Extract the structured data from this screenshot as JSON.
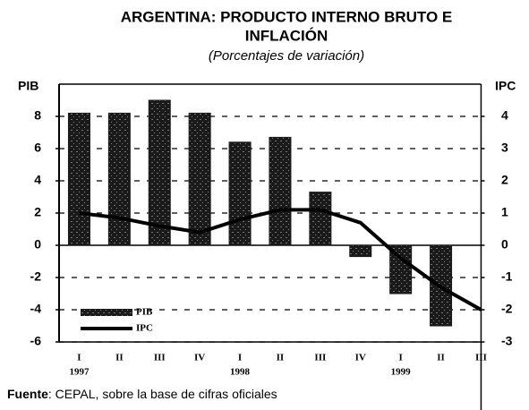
{
  "chart_data": {
    "type": "bar_line",
    "title_lines": [
      "ARGENTINA: PRODUCTO INTERNO BRUTO E",
      "INFLACIÓN"
    ],
    "subtitle": "(Porcentajes de variación)",
    "y_label": "PIB",
    "y2_label": "IPC",
    "categories": [
      "I",
      "II",
      "III",
      "IV",
      "I",
      "II",
      "III",
      "IV",
      "I",
      "II",
      "III"
    ],
    "year_labels": [
      "1997",
      null,
      null,
      null,
      "1998",
      null,
      null,
      null,
      "1999",
      null,
      null
    ],
    "series": [
      {
        "name": "PIB",
        "color": "#1a1a1a",
        "values": [
          8.2,
          8.2,
          9.0,
          8.2,
          6.4,
          6.7,
          3.3,
          -0.7,
          -3.0,
          -5.0,
          null
        ]
      },
      {
        "name": "IPC",
        "color": "#000000",
        "axis": "y2",
        "values": [
          1.0,
          0.85,
          0.6,
          0.4,
          0.8,
          1.1,
          1.1,
          0.7,
          -0.4,
          -1.3,
          -2.0
        ]
      }
    ],
    "ylim": [
      -6,
      10
    ],
    "yticks": [
      -6,
      -4,
      -2,
      0,
      2,
      4,
      6,
      8
    ],
    "y2lim": [
      -3,
      5
    ],
    "y2ticks": [
      -3,
      -2,
      -1,
      0,
      1,
      2,
      3,
      4
    ],
    "grid": true,
    "legend": "lower left",
    "source": {
      "label": "Fuente",
      "text": ": CEPAL, sobre la base de cifras oficiales"
    }
  }
}
